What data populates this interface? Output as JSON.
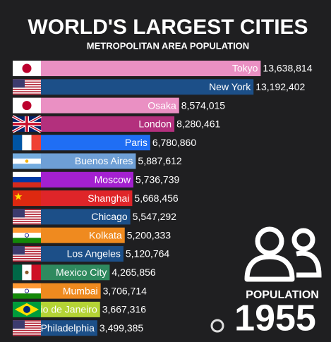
{
  "chart_data": {
    "type": "bar",
    "orientation": "horizontal",
    "title": "WORLD'S LARGEST CITIES",
    "subtitle": "METROPOLITAN AREA POPULATION",
    "counter_label": "POPULATION",
    "year": 1955,
    "categories": [
      "Tokyo",
      "New York",
      "Osaka",
      "London",
      "Paris",
      "Buenos Aires",
      "Moscow",
      "Shanghai",
      "Chicago",
      "Kolkata",
      "Los Angeles",
      "Mexico City",
      "Mumbai",
      "Rio de Janeiro",
      "Philadelphia"
    ],
    "values": [
      13638814,
      13192402,
      8574015,
      8280461,
      6780860,
      5887612,
      5736739,
      5668456,
      5547292,
      5200333,
      5120764,
      4265856,
      3706714,
      3667316,
      3499385
    ],
    "value_labels": [
      "13,638,814",
      "13,192,402",
      "8,574,015",
      "8,280,461",
      "6,780,860",
      "5,887,612",
      "5,736,739",
      "5,668,456",
      "5,547,292",
      "5,200,333",
      "5,120,764",
      "4,265,856",
      "3,706,714",
      "3,667,316",
      "3,499,385"
    ],
    "colors": [
      "#ea90c3",
      "#1c4f88",
      "#ea90c3",
      "#b3307d",
      "#1f6ef4",
      "#6e9fd6",
      "#a420d0",
      "#df2529",
      "#1c4f88",
      "#ef8a1f",
      "#1c4f88",
      "#2f8a5f",
      "#ef8a1f",
      "#b4d335",
      "#1c4f88"
    ],
    "xlim": [
      0,
      18000000
    ]
  }
}
